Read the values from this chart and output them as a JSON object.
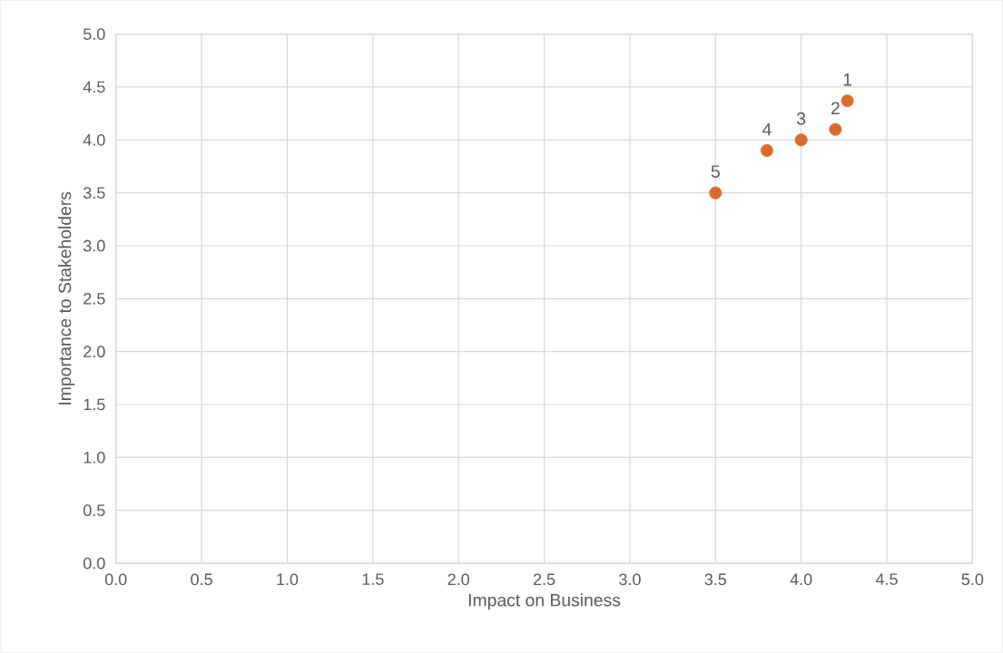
{
  "chart_data": {
    "type": "scatter",
    "xlabel": "Impact on Business",
    "ylabel": "Importance to Stakeholders",
    "x": [
      4.27,
      4.2,
      4.0,
      3.8,
      3.5
    ],
    "series": [
      {
        "color": "#dd6a2a",
        "values": [
          4.37,
          4.1,
          4.0,
          3.9,
          3.5
        ]
      }
    ],
    "xlim": [
      0,
      5
    ],
    "ylim": [
      0,
      5
    ],
    "xticks": [
      {
        "value": 0,
        "label": "0.0"
      },
      {
        "value": 0.5,
        "label": "0.5"
      },
      {
        "value": 1,
        "label": "1.0"
      },
      {
        "value": 1.5,
        "label": "1.5"
      },
      {
        "value": 2,
        "label": "2.0"
      },
      {
        "value": 2.5,
        "label": "2.5"
      },
      {
        "value": 3,
        "label": "3.0"
      },
      {
        "value": 3.5,
        "label": "3.5"
      },
      {
        "value": 4,
        "label": "4.0"
      },
      {
        "value": 4.5,
        "label": "4.5"
      },
      {
        "value": 5,
        "label": "5.0"
      }
    ],
    "yticks": [
      {
        "value": 0,
        "label": "0.0"
      },
      {
        "value": 0.5,
        "label": "0.5"
      },
      {
        "value": 1,
        "label": "1.0"
      },
      {
        "value": 1.5,
        "label": "1.5"
      },
      {
        "value": 2,
        "label": "2.0"
      },
      {
        "value": 2.5,
        "label": "2.5"
      },
      {
        "value": 3,
        "label": "3.0"
      },
      {
        "value": 3.5,
        "label": "3.5"
      },
      {
        "value": 4,
        "label": "4.0"
      },
      {
        "value": 4.5,
        "label": "4.5"
      },
      {
        "value": 5,
        "label": "5.0"
      }
    ],
    "grid": true,
    "marker": "circle",
    "annotations": [
      {
        "text": "1",
        "x": 4.27,
        "y": 4.37
      },
      {
        "text": "2",
        "x": 4.2,
        "y": 4.1
      },
      {
        "text": "3",
        "x": 4.0,
        "y": 4.0
      },
      {
        "text": "4",
        "x": 3.8,
        "y": 3.9
      },
      {
        "text": "5",
        "x": 3.5,
        "y": 3.5
      }
    ]
  }
}
